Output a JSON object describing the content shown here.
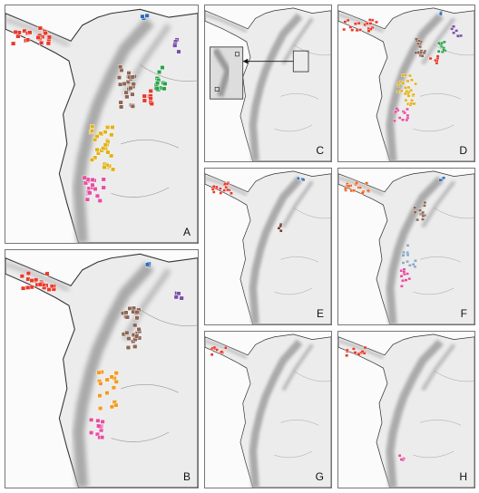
{
  "panels": [
    {
      "label": "A"
    },
    {
      "label": "B"
    },
    {
      "label": "C"
    },
    {
      "label": "D"
    },
    {
      "label": "E"
    },
    {
      "label": "F"
    },
    {
      "label": "G"
    },
    {
      "label": "H"
    }
  ]
}
